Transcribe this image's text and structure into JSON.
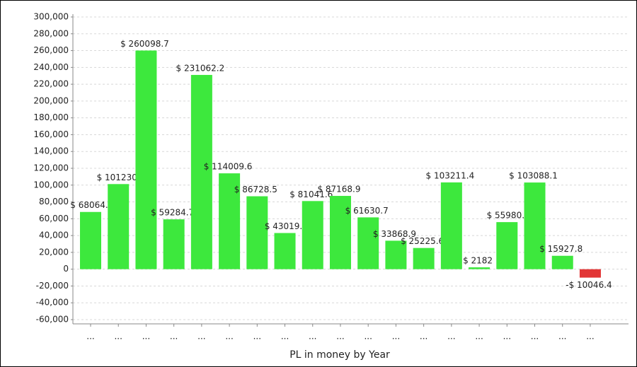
{
  "chart_data": {
    "type": "bar",
    "x_label": "PL in money by Year",
    "categories": [
      "...",
      "...",
      "...",
      "...",
      "...",
      "...",
      "...",
      "...",
      "...",
      "...",
      "...",
      "...",
      "...",
      "...",
      "...",
      "...",
      "...",
      "...",
      "..."
    ],
    "values": [
      68064,
      101230,
      260098.7,
      59284.7,
      231062.2,
      114009.6,
      86728.5,
      43019,
      81041.6,
      87168.9,
      61630.7,
      33868.9,
      25225.6,
      103211.4,
      2182,
      55980,
      103088.1,
      15927.8,
      -10046.4
    ],
    "value_labels": [
      "$ 68064.",
      "$ 101230",
      "$ 260098.7",
      "$ 59284.7",
      "$ 231062.2",
      "$ 114009.6",
      "$ 86728.5",
      "$ 43019.",
      "$ 81041.6",
      "$ 87168.9",
      "$ 61630.7",
      "$ 33868.9",
      "$ 25225.6",
      "$ 103211.4",
      "$ 2182",
      "$ 55980.",
      "$ 103088.1",
      "$ 15927.8",
      "-$ 10046.4"
    ],
    "color": "#3de83d",
    "negative_color": "#e23636",
    "ylim": [
      -60000,
      300000
    ],
    "yticks": [
      {
        "value": -60000,
        "label": "-60,000"
      },
      {
        "value": -40000,
        "label": "-40,000"
      },
      {
        "value": -20000,
        "label": "-20,000"
      },
      0,
      {
        "value": 20000,
        "label": "20,000"
      },
      {
        "value": 40000,
        "label": "40,000"
      },
      {
        "value": 60000,
        "label": "60,000"
      },
      {
        "value": 80000,
        "label": "80,000"
      },
      {
        "value": 100000,
        "label": "100,000"
      },
      {
        "value": 120000,
        "label": "120,000"
      },
      {
        "value": 140000,
        "label": "140,000"
      },
      {
        "value": 160000,
        "label": "160,000"
      },
      {
        "value": 180000,
        "label": "180,000"
      },
      {
        "value": 200000,
        "label": "200,000"
      },
      {
        "value": 220000,
        "label": "220,000"
      },
      {
        "value": 240000,
        "label": "240,000"
      },
      {
        "value": 260000,
        "label": "260,000"
      },
      {
        "value": 280000,
        "label": "280,000"
      },
      {
        "value": 300000,
        "label": "300,000"
      }
    ],
    "grid": true
  }
}
